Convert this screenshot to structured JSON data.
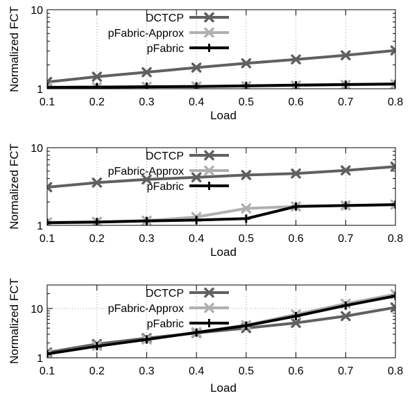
{
  "chart_data": [
    {
      "type": "line",
      "xlabel": "Load",
      "ylabel": "Normalized FCT",
      "x": [
        0.1,
        0.2,
        0.3,
        0.4,
        0.5,
        0.6,
        0.7,
        0.8
      ],
      "x_tick_labels": [
        "0.1",
        "0.2",
        "0.3",
        "0.4",
        "0.5",
        "0.6",
        "0.7",
        "0.8"
      ],
      "y_scale": "log",
      "ylim": [
        1,
        10
      ],
      "y_ticks": [
        1,
        10
      ],
      "y_tick_labels": [
        "1",
        "10"
      ],
      "grid": true,
      "legend_position": "top-center",
      "series": [
        {
          "name": "DCTCP",
          "color": "#606060",
          "marker": "x",
          "values": [
            1.22,
            1.42,
            1.62,
            1.85,
            2.1,
            2.35,
            2.65,
            3.05
          ]
        },
        {
          "name": "pFabric-Approx",
          "color": "#b0b0b0",
          "marker": "x",
          "values": [
            1.05,
            1.05,
            1.06,
            1.07,
            1.08,
            1.1,
            1.12,
            1.14
          ]
        },
        {
          "name": "pFabric",
          "color": "#000000",
          "marker": "plus",
          "values": [
            1.04,
            1.05,
            1.06,
            1.07,
            1.09,
            1.11,
            1.13,
            1.15
          ]
        }
      ]
    },
    {
      "type": "line",
      "xlabel": "Load",
      "ylabel": "Normalized FCT",
      "x": [
        0.1,
        0.2,
        0.3,
        0.4,
        0.5,
        0.6,
        0.7,
        0.8
      ],
      "x_tick_labels": [
        "0.1",
        "0.2",
        "0.3",
        "0.4",
        "0.5",
        "0.6",
        "0.7",
        "0.8"
      ],
      "y_scale": "log",
      "ylim": [
        1,
        10
      ],
      "y_ticks": [
        1,
        10
      ],
      "y_tick_labels": [
        "1",
        "10"
      ],
      "grid": true,
      "legend_position": "top-center",
      "series": [
        {
          "name": "DCTCP",
          "color": "#606060",
          "marker": "x",
          "values": [
            3.1,
            3.55,
            3.9,
            4.15,
            4.45,
            4.65,
            5.1,
            5.7
          ]
        },
        {
          "name": "pFabric-Approx",
          "color": "#b0b0b0",
          "marker": "x",
          "values": [
            1.09,
            1.11,
            1.15,
            1.28,
            1.65,
            1.75,
            1.8,
            1.85
          ]
        },
        {
          "name": "pFabric",
          "color": "#000000",
          "marker": "plus",
          "values": [
            1.08,
            1.1,
            1.14,
            1.17,
            1.22,
            1.75,
            1.8,
            1.85
          ]
        }
      ]
    },
    {
      "type": "line",
      "xlabel": "Load",
      "ylabel": "Normalized FCT",
      "x": [
        0.1,
        0.2,
        0.3,
        0.4,
        0.5,
        0.6,
        0.7,
        0.8
      ],
      "x_tick_labels": [
        "0.1",
        "0.2",
        "0.3",
        "0.4",
        "0.5",
        "0.6",
        "0.7",
        "0.8"
      ],
      "y_scale": "log",
      "ylim": [
        1,
        30
      ],
      "y_ticks": [
        1,
        10
      ],
      "y_tick_labels": [
        "1",
        "10"
      ],
      "grid": true,
      "legend_position": "top-center",
      "series": [
        {
          "name": "DCTCP",
          "color": "#606060",
          "marker": "x",
          "values": [
            1.28,
            1.9,
            2.5,
            3.2,
            4.0,
            5.1,
            7.0,
            10.5
          ]
        },
        {
          "name": "pFabric-Approx",
          "color": "#b0b0b0",
          "marker": "x",
          "values": [
            1.2,
            1.75,
            2.35,
            3.3,
            4.6,
            7.6,
            12.5,
            19.5
          ]
        },
        {
          "name": "pFabric",
          "color": "#000000",
          "marker": "plus",
          "values": [
            1.2,
            1.72,
            2.35,
            3.25,
            4.5,
            7.0,
            11.5,
            18.0
          ]
        }
      ]
    }
  ]
}
